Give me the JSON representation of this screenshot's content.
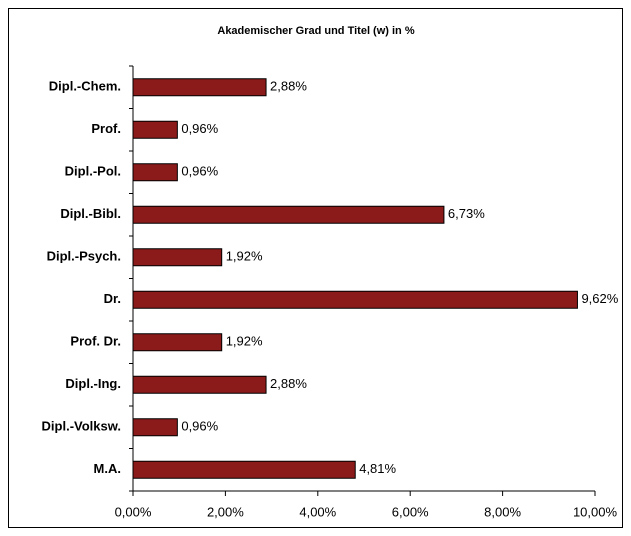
{
  "chart_data": {
    "type": "bar",
    "orientation": "horizontal",
    "title": "Akademischer Grad und Titel (w) in %",
    "categories": [
      "Dipl.-Chem.",
      "Prof.",
      "Dipl.-Pol.",
      "Dipl.-Bibl.",
      "Dipl.-Psych.",
      "Dr.",
      "Prof. Dr.",
      "Dipl.-Ing.",
      "Dipl.-Volksw.",
      "M.A."
    ],
    "values": [
      2.88,
      0.96,
      0.96,
      6.73,
      1.92,
      9.62,
      1.92,
      2.88,
      0.96,
      4.81
    ],
    "value_labels": [
      "2,88%",
      "0,96%",
      "0,96%",
      "6,73%",
      "1,92%",
      "9,62%",
      "1,92%",
      "2,88%",
      "0,96%",
      "4,81%"
    ],
    "color": "#8b1a1a",
    "xlim": [
      0,
      10
    ],
    "xticks": [
      {
        "value": 0,
        "label": "0,00%"
      },
      {
        "value": 2,
        "label": "2,00%"
      },
      {
        "value": 4,
        "label": "4,00%"
      },
      {
        "value": 6,
        "label": "6,00%"
      },
      {
        "value": 8,
        "label": "8,00%"
      },
      {
        "value": 10,
        "label": "10,00%"
      }
    ],
    "grid": false
  }
}
